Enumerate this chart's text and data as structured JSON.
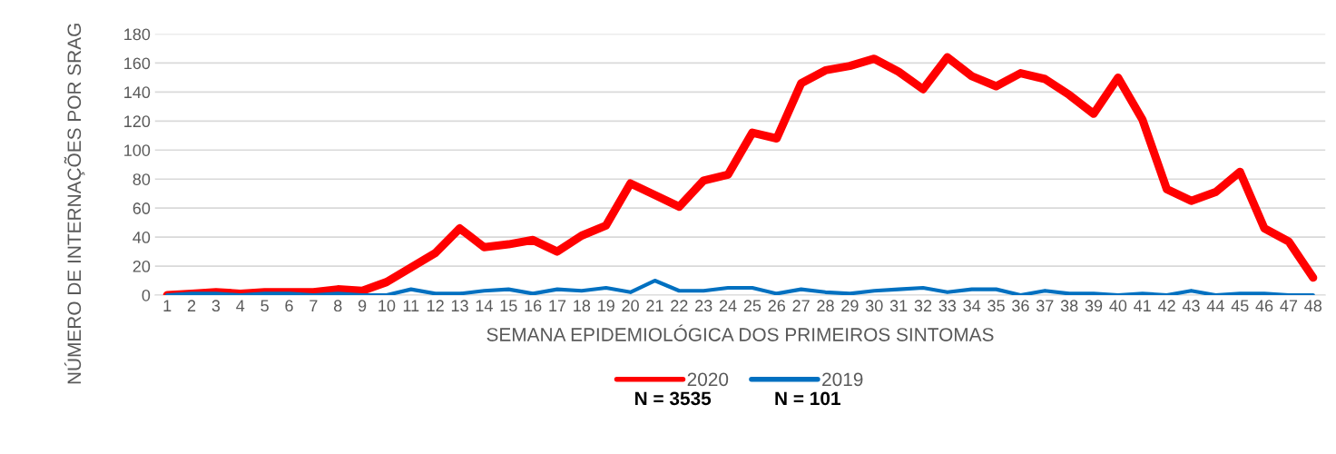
{
  "chart_data": {
    "type": "line",
    "xlabel": "SEMANA EPIDEMIOLÓGICA DOS PRIMEIROS SINTOMAS",
    "ylabel": "NÚMERO DE INTERNAÇÕES POR SRAG",
    "categories": [
      "1",
      "2",
      "3",
      "4",
      "5",
      "6",
      "7",
      "8",
      "9",
      "10",
      "11",
      "12",
      "13",
      "14",
      "15",
      "16",
      "17",
      "18",
      "19",
      "20",
      "21",
      "22",
      "23",
      "24",
      "25",
      "26",
      "27",
      "28",
      "29",
      "30",
      "31",
      "32",
      "33",
      "34",
      "35",
      "36",
      "37",
      "38",
      "39",
      "40",
      "41",
      "42",
      "43",
      "44",
      "45",
      "46",
      "47",
      "48"
    ],
    "series": [
      {
        "name": "2020",
        "color": "#ff0000",
        "values": [
          0,
          1,
          2,
          1,
          2,
          2,
          2,
          4,
          3,
          9,
          19,
          29,
          46,
          33,
          35,
          38,
          30,
          41,
          48,
          77,
          69,
          61,
          79,
          83,
          112,
          108,
          146,
          155,
          158,
          163,
          154,
          142,
          164,
          151,
          144,
          153,
          149,
          138,
          125,
          150,
          121,
          73,
          65,
          71,
          85,
          46,
          37,
          12
        ]
      },
      {
        "name": "2019",
        "color": "#0070c0",
        "values": [
          0,
          1,
          1,
          0,
          1,
          1,
          0,
          1,
          0,
          0,
          4,
          1,
          1,
          3,
          4,
          1,
          4,
          3,
          5,
          2,
          10,
          3,
          3,
          5,
          5,
          1,
          4,
          2,
          1,
          3,
          4,
          5,
          2,
          4,
          4,
          0,
          3,
          1,
          1,
          0,
          1,
          0,
          3,
          0,
          1,
          1,
          0,
          0
        ]
      }
    ],
    "ylim": [
      0,
      180
    ],
    "yticks": [
      0,
      20,
      40,
      60,
      80,
      100,
      120,
      140,
      160,
      180
    ],
    "grid": "y",
    "legend": "bottom",
    "marker": "none",
    "line_style": "solid",
    "annotations": [
      "N = 3535",
      "N = 101"
    ]
  }
}
